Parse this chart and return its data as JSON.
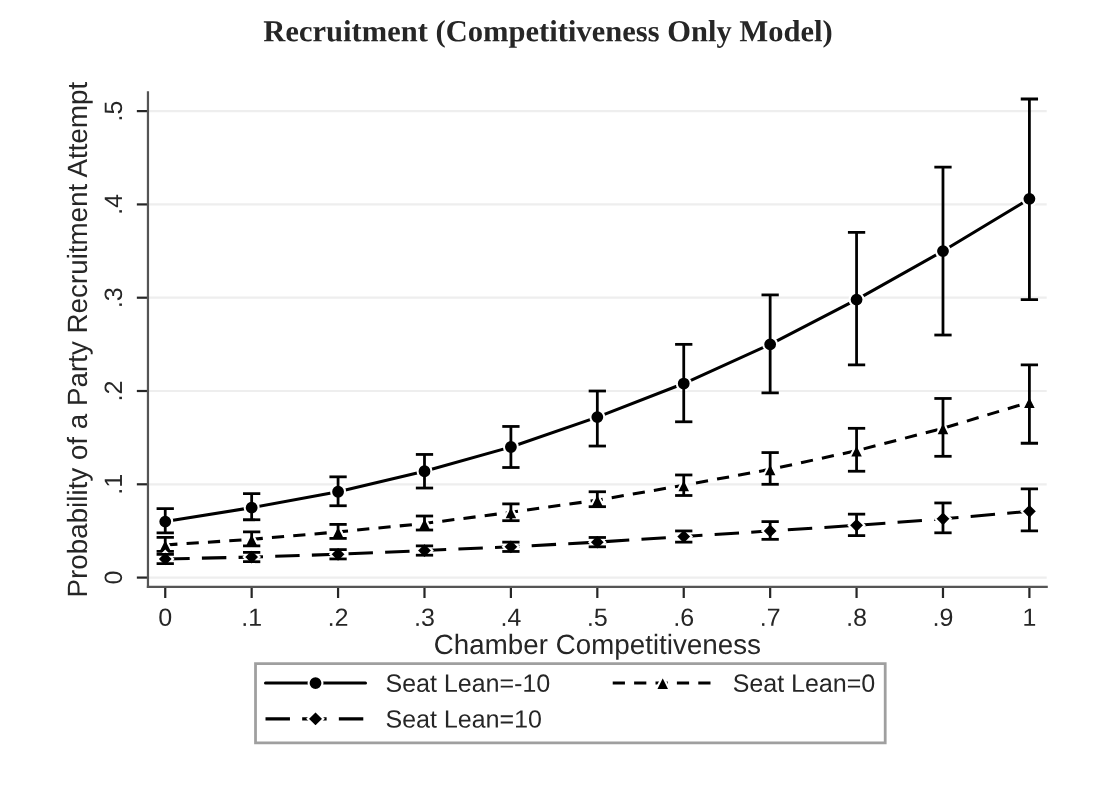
{
  "chart_data": {
    "type": "line",
    "title": "Recruitment (Competitiveness Only Model)",
    "xlabel": "Chamber Competitiveness",
    "ylabel": "Probability of a Party Recruitment Attempt",
    "x": [
      0,
      0.1,
      0.2,
      0.3,
      0.4,
      0.5,
      0.6,
      0.7,
      0.8,
      0.9,
      1
    ],
    "xlim": [
      -0.02,
      1.02
    ],
    "xticks": [
      0,
      {
        "value": 0.1,
        "label": ".1"
      },
      {
        "value": 0.2,
        "label": ".2"
      },
      {
        "value": 0.3,
        "label": ".3"
      },
      {
        "value": 0.4,
        "label": ".4"
      },
      {
        "value": 0.5,
        "label": ".5"
      },
      {
        "value": 0.6,
        "label": ".6"
      },
      {
        "value": 0.7,
        "label": ".7"
      },
      {
        "value": 0.8,
        "label": ".8"
      },
      {
        "value": 0.9,
        "label": ".9"
      },
      1
    ],
    "ylim": [
      -0.01,
      0.52
    ],
    "yticks": [
      0,
      {
        "value": 0.1,
        "label": ".1"
      },
      {
        "value": 0.2,
        "label": ".2"
      },
      {
        "value": 0.3,
        "label": ".3"
      },
      {
        "value": 0.4,
        "label": ".4"
      },
      {
        "value": 0.5,
        "label": ".5"
      }
    ],
    "grid": "y",
    "legend": "bottom",
    "series": [
      {
        "name": "Seat Lean=-10",
        "color": "#000000",
        "marker": "circle",
        "line_style": "solid",
        "values": [
          0.06,
          0.075,
          0.092,
          0.114,
          0.14,
          0.172,
          0.208,
          0.25,
          0.298,
          0.35,
          0.406
        ],
        "errors": [
          [
            0.048,
            0.074
          ],
          [
            0.062,
            0.09
          ],
          [
            0.077,
            0.108
          ],
          [
            0.096,
            0.132
          ],
          [
            0.118,
            0.162
          ],
          [
            0.141,
            0.2
          ],
          [
            0.167,
            0.25
          ],
          [
            0.198,
            0.303
          ],
          [
            0.228,
            0.37
          ],
          [
            0.26,
            0.44
          ],
          [
            0.298,
            0.513
          ]
        ]
      },
      {
        "name": "Seat Lean=0",
        "color": "#000000",
        "marker": "triangle",
        "line_style": "dashed",
        "values": [
          0.035,
          0.041,
          0.049,
          0.058,
          0.07,
          0.083,
          0.099,
          0.116,
          0.136,
          0.16,
          0.188
        ],
        "errors": [
          [
            0.028,
            0.043
          ],
          [
            0.034,
            0.049
          ],
          [
            0.042,
            0.057
          ],
          [
            0.051,
            0.066
          ],
          [
            0.061,
            0.079
          ],
          [
            0.076,
            0.092
          ],
          [
            0.088,
            0.11
          ],
          [
            0.1,
            0.134
          ],
          [
            0.114,
            0.16
          ],
          [
            0.13,
            0.192
          ],
          [
            0.144,
            0.228
          ]
        ]
      },
      {
        "name": "Seat Lean=10",
        "color": "#000000",
        "marker": "diamond",
        "line_style": "longdash",
        "values": [
          0.02,
          0.022,
          0.025,
          0.029,
          0.033,
          0.038,
          0.044,
          0.05,
          0.056,
          0.063,
          0.071
        ],
        "errors": [
          [
            0.015,
            0.025
          ],
          [
            0.017,
            0.027
          ],
          [
            0.02,
            0.03
          ],
          [
            0.024,
            0.034
          ],
          [
            0.028,
            0.038
          ],
          [
            0.033,
            0.043
          ],
          [
            0.038,
            0.05
          ],
          [
            0.041,
            0.06
          ],
          [
            0.045,
            0.068
          ],
          [
            0.048,
            0.08
          ],
          [
            0.05,
            0.095
          ]
        ]
      }
    ]
  }
}
